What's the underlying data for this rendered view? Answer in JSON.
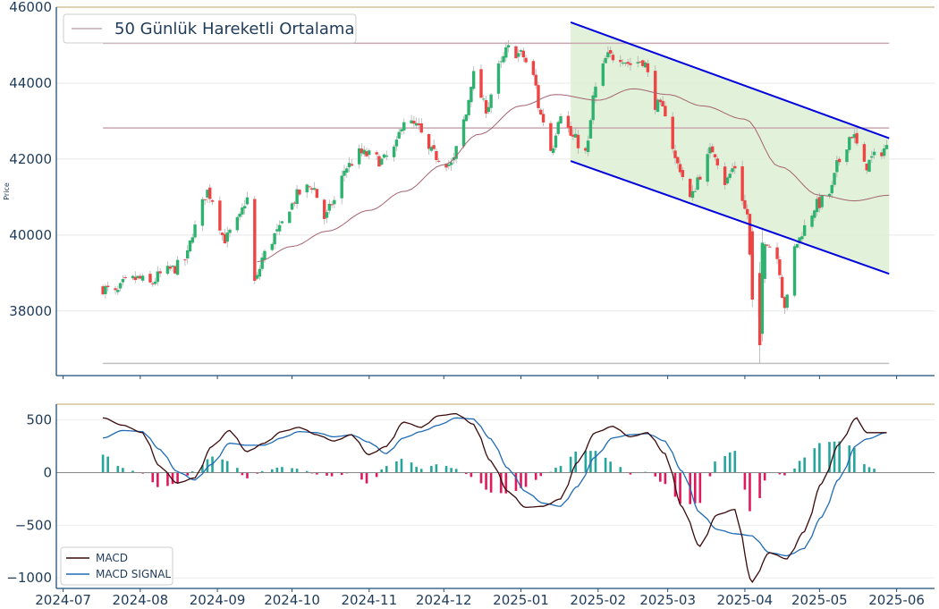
{
  "chart_data": [
    {
      "type": "candlestick",
      "ylabel": "Price",
      "ylim": [
        36300,
        46000
      ],
      "y_ticks": [
        38000,
        40000,
        42000,
        44000,
        46000
      ],
      "legend": {
        "placement": "top-left",
        "entries": [
          "50 Günlük Hareketli Ortalama"
        ]
      },
      "colors": {
        "up": "#26a69a",
        "down": "#ef5350",
        "ma": "#a56470",
        "channel_line": "#0000dd",
        "channel_fill": "#dcefd4",
        "level_line": "#c8a8b0",
        "floor_line": "#c0c0c0",
        "frame": "#1f4e79"
      },
      "horizontal_levels": [
        45050,
        42820,
        36620
      ],
      "channel": {
        "start_date": "2025-01-21",
        "end_date": "2025-05-29",
        "upper": [
          45600,
          42550
        ],
        "lower": [
          41950,
          38980
        ]
      },
      "ohlc_daily_close_anchors": [
        [
          "2024-07-17",
          38600
        ],
        [
          "2024-07-22",
          38450
        ],
        [
          "2024-07-26",
          38750
        ],
        [
          "2024-07-31",
          38850
        ],
        [
          "2024-08-05",
          38700
        ],
        [
          "2024-08-09",
          38950
        ],
        [
          "2024-08-14",
          39100
        ],
        [
          "2024-08-19",
          39350
        ],
        [
          "2024-08-23",
          40200
        ],
        [
          "2024-08-28",
          41150
        ],
        [
          "2024-08-30",
          40950
        ],
        [
          "2024-09-04",
          39900
        ],
        [
          "2024-09-09",
          40350
        ],
        [
          "2024-09-13",
          40950
        ],
        [
          "2024-09-16",
          38750
        ],
        [
          "2024-09-20",
          39500
        ],
        [
          "2024-09-25",
          40050
        ],
        [
          "2024-09-30",
          40750
        ],
        [
          "2024-10-04",
          41100
        ],
        [
          "2024-10-09",
          41300
        ],
        [
          "2024-10-14",
          40450
        ],
        [
          "2024-10-18",
          40900
        ],
        [
          "2024-10-23",
          41800
        ],
        [
          "2024-10-28",
          42150
        ],
        [
          "2024-11-01",
          42100
        ],
        [
          "2024-11-06",
          41950
        ],
        [
          "2024-11-11",
          42250
        ],
        [
          "2024-11-15",
          43050
        ],
        [
          "2024-11-20",
          42850
        ],
        [
          "2024-11-25",
          42200
        ],
        [
          "2024-11-29",
          42050
        ],
        [
          "2024-12-04",
          41850
        ],
        [
          "2024-12-09",
          43000
        ],
        [
          "2024-12-13",
          44200
        ],
        [
          "2024-12-18",
          43350
        ],
        [
          "2024-12-23",
          44400
        ],
        [
          "2024-12-27",
          44900
        ],
        [
          "2025-01-01",
          44750
        ],
        [
          "2025-01-06",
          44150
        ],
        [
          "2025-01-09",
          43150
        ],
        [
          "2025-01-13",
          42250
        ],
        [
          "2025-01-17",
          43250
        ],
        [
          "2025-01-22",
          42550
        ],
        [
          "2025-01-27",
          42150
        ],
        [
          "2025-01-31",
          43850
        ],
        [
          "2025-02-05",
          44700
        ],
        [
          "2025-02-10",
          44700
        ],
        [
          "2025-02-14",
          44500
        ],
        [
          "2025-02-19",
          44600
        ],
        [
          "2025-02-24",
          43450
        ],
        [
          "2025-02-28",
          43250
        ],
        [
          "2025-03-05",
          41850
        ],
        [
          "2025-03-10",
          40950
        ],
        [
          "2025-03-14",
          41600
        ],
        [
          "2025-03-19",
          42250
        ],
        [
          "2025-03-24",
          41400
        ],
        [
          "2025-03-28",
          41800
        ],
        [
          "2025-04-02",
          40550
        ],
        [
          "2025-04-04",
          38300
        ],
        [
          "2025-04-07",
          37700
        ],
        [
          "2025-04-09",
          39900
        ],
        [
          "2025-04-14",
          39400
        ],
        [
          "2025-04-17",
          38150
        ],
        [
          "2025-04-22",
          39800
        ],
        [
          "2025-04-25",
          40200
        ],
        [
          "2025-04-30",
          40800
        ],
        [
          "2025-05-05",
          41100
        ],
        [
          "2025-05-09",
          41950
        ],
        [
          "2025-05-14",
          42650
        ],
        [
          "2025-05-19",
          41800
        ],
        [
          "2025-05-23",
          42050
        ],
        [
          "2025-05-28",
          42300
        ]
      ],
      "ma_anchors": [
        [
          "2024-09-17",
          39300
        ],
        [
          "2024-10-01",
          39700
        ],
        [
          "2024-10-15",
          40100
        ],
        [
          "2024-11-01",
          40650
        ],
        [
          "2024-11-15",
          41150
        ],
        [
          "2024-12-01",
          41850
        ],
        [
          "2024-12-15",
          42650
        ],
        [
          "2025-01-01",
          43400
        ],
        [
          "2025-01-15",
          43700
        ],
        [
          "2025-02-01",
          43550
        ],
        [
          "2025-02-15",
          43850
        ],
        [
          "2025-03-01",
          43700
        ],
        [
          "2025-03-15",
          43400
        ],
        [
          "2025-04-01",
          43050
        ],
        [
          "2025-04-15",
          41800
        ],
        [
          "2025-05-01",
          41050
        ],
        [
          "2025-05-15",
          40900
        ],
        [
          "2025-05-29",
          41050
        ]
      ]
    },
    {
      "type": "line",
      "ylim": [
        -1100,
        650
      ],
      "y_ticks": [
        -1000,
        -500,
        0,
        500
      ],
      "x_ticks": [
        "2024-07",
        "2024-08",
        "2024-09",
        "2024-10",
        "2024-11",
        "2024-12",
        "2025-01",
        "2025-02",
        "2025-03",
        "2025-04",
        "2025-05",
        "2025-06"
      ],
      "legend": {
        "placement": "bottom-left",
        "entries": [
          "MACD",
          "MACD SIGNAL"
        ]
      },
      "colors": {
        "macd": "#3b0a0a",
        "signal": "#1f6bb5",
        "hist_pos": "#26a69a",
        "hist_neg": "#e0195c"
      },
      "macd_anchors": [
        [
          "2024-07-17",
          520
        ],
        [
          "2024-07-25",
          450
        ],
        [
          "2024-08-02",
          380
        ],
        [
          "2024-08-09",
          60
        ],
        [
          "2024-08-16",
          -100
        ],
        [
          "2024-08-23",
          -50
        ],
        [
          "2024-08-30",
          250
        ],
        [
          "2024-09-06",
          400
        ],
        [
          "2024-09-13",
          200
        ],
        [
          "2024-09-20",
          280
        ],
        [
          "2024-09-27",
          390
        ],
        [
          "2024-10-04",
          430
        ],
        [
          "2024-10-11",
          360
        ],
        [
          "2024-10-18",
          300
        ],
        [
          "2024-10-25",
          360
        ],
        [
          "2024-11-01",
          170
        ],
        [
          "2024-11-08",
          250
        ],
        [
          "2024-11-15",
          480
        ],
        [
          "2024-11-22",
          430
        ],
        [
          "2024-11-29",
          540
        ],
        [
          "2024-12-06",
          560
        ],
        [
          "2024-12-13",
          460
        ],
        [
          "2024-12-20",
          110
        ],
        [
          "2024-12-27",
          -180
        ],
        [
          "2025-01-03",
          -330
        ],
        [
          "2025-01-10",
          -320
        ],
        [
          "2025-01-17",
          -250
        ],
        [
          "2025-01-24",
          100
        ],
        [
          "2025-01-31",
          380
        ],
        [
          "2025-02-07",
          440
        ],
        [
          "2025-02-14",
          340
        ],
        [
          "2025-02-21",
          380
        ],
        [
          "2025-02-28",
          180
        ],
        [
          "2025-03-07",
          -330
        ],
        [
          "2025-03-14",
          -700
        ],
        [
          "2025-03-21",
          -400
        ],
        [
          "2025-03-28",
          -350
        ],
        [
          "2025-04-04",
          -1040
        ],
        [
          "2025-04-11",
          -760
        ],
        [
          "2025-04-18",
          -820
        ],
        [
          "2025-04-25",
          -560
        ],
        [
          "2025-05-02",
          -100
        ],
        [
          "2025-05-09",
          270
        ],
        [
          "2025-05-16",
          520
        ],
        [
          "2025-05-20",
          380
        ],
        [
          "2025-05-28",
          380
        ]
      ],
      "signal_anchors": [
        [
          "2024-07-17",
          330
        ],
        [
          "2024-07-25",
          400
        ],
        [
          "2024-08-02",
          390
        ],
        [
          "2024-08-09",
          220
        ],
        [
          "2024-08-16",
          10
        ],
        [
          "2024-08-23",
          -70
        ],
        [
          "2024-08-30",
          80
        ],
        [
          "2024-09-06",
          280
        ],
        [
          "2024-09-13",
          260
        ],
        [
          "2024-09-20",
          260
        ],
        [
          "2024-09-27",
          330
        ],
        [
          "2024-10-04",
          390
        ],
        [
          "2024-10-11",
          380
        ],
        [
          "2024-10-18",
          340
        ],
        [
          "2024-10-25",
          360
        ],
        [
          "2024-11-01",
          290
        ],
        [
          "2024-11-08",
          180
        ],
        [
          "2024-11-15",
          330
        ],
        [
          "2024-11-22",
          390
        ],
        [
          "2024-11-29",
          450
        ],
        [
          "2024-12-06",
          520
        ],
        [
          "2024-12-13",
          510
        ],
        [
          "2024-12-20",
          320
        ],
        [
          "2024-12-27",
          40
        ],
        [
          "2025-01-03",
          -180
        ],
        [
          "2025-01-10",
          -290
        ],
        [
          "2025-01-17",
          -320
        ],
        [
          "2025-01-24",
          -130
        ],
        [
          "2025-01-31",
          150
        ],
        [
          "2025-02-07",
          330
        ],
        [
          "2025-02-14",
          360
        ],
        [
          "2025-02-21",
          370
        ],
        [
          "2025-02-28",
          300
        ],
        [
          "2025-03-07",
          10
        ],
        [
          "2025-03-14",
          -380
        ],
        [
          "2025-03-21",
          -540
        ],
        [
          "2025-03-28",
          -580
        ],
        [
          "2025-04-04",
          -600
        ],
        [
          "2025-04-11",
          -760
        ],
        [
          "2025-04-18",
          -790
        ],
        [
          "2025-04-25",
          -720
        ],
        [
          "2025-05-02",
          -420
        ],
        [
          "2025-05-09",
          -60
        ],
        [
          "2025-05-16",
          260
        ],
        [
          "2025-05-20",
          320
        ],
        [
          "2025-05-28",
          380
        ]
      ]
    }
  ]
}
